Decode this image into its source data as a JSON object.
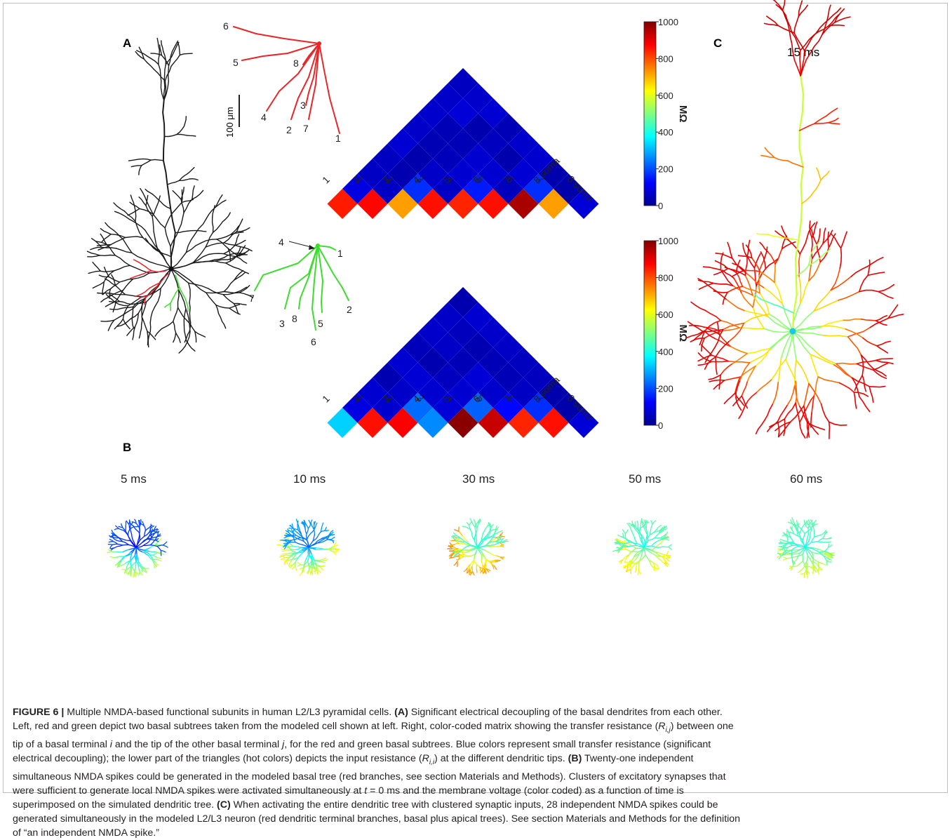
{
  "panels": {
    "a_label": "A",
    "b_label": "B",
    "c_label": "C"
  },
  "scale_bar": "100 μm",
  "red_tree": {
    "soma_label": "soma",
    "tip_labels": [
      "1",
      "2",
      "3",
      "4",
      "5",
      "6",
      "7",
      "8"
    ],
    "color": "#e8262a"
  },
  "green_tree": {
    "soma_label": "soma",
    "tip_labels": [
      "1",
      "2",
      "3",
      "4",
      "5",
      "6",
      "7",
      "8"
    ],
    "color": "#3ddc2e"
  },
  "matrix_axis_labels": [
    "1",
    "2",
    "3",
    "4",
    "5",
    "6",
    "7",
    "8 soma"
  ],
  "colorbar": {
    "unit": "MΩ",
    "ticks": [
      "1000",
      "800",
      "600",
      "400",
      "200",
      "0"
    ]
  },
  "time_labels": {
    "c": "15 ms",
    "b": [
      "5 ms",
      "10 ms",
      "30 ms",
      "50 ms",
      "60 ms"
    ]
  },
  "chart_data": [
    {
      "type": "heatmap",
      "description_source": "red basal subtree",
      "unit": "MΩ",
      "range": [
        0,
        1000
      ],
      "labels": [
        "1",
        "2",
        "3",
        "4",
        "5",
        "6",
        "7",
        "8",
        "soma"
      ],
      "diagonal_input_resistance": [
        850,
        870,
        720,
        860,
        840,
        860,
        960,
        720,
        80
      ],
      "offdiag_first_row": [
        90,
        60,
        170,
        60,
        150,
        50,
        170,
        30
      ]
    },
    {
      "type": "heatmap",
      "description_source": "green basal subtree",
      "unit": "MΩ",
      "range": [
        0,
        1000
      ],
      "labels": [
        "1",
        "2",
        "3",
        "4",
        "5",
        "6",
        "7",
        "8",
        "soma"
      ],
      "diagonal_input_resistance": [
        330,
        860,
        880,
        260,
        990,
        930,
        840,
        860,
        80
      ],
      "offdiag_first_row": [
        90,
        70,
        230,
        80,
        220,
        130,
        170,
        30
      ]
    }
  ],
  "caption": {
    "figure_label": "FIGURE 6 |",
    "lines": [
      {
        "segments": [
          {
            "t": " Multiple NMDA-based functional subunits in human L2/L3 pyramidal cells. "
          },
          {
            "t": "(A)",
            "b": true
          },
          {
            "t": " Significant electrical decoupling of the basal dendrites from each other."
          }
        ]
      },
      {
        "segments": [
          {
            "t": "Left, red and green depict two basal subtrees taken from the modeled cell shown at left. Right, color-coded matrix showing the transfer resistance ("
          },
          {
            "t": "R",
            "i": true
          },
          {
            "t": "i,j",
            "sub": true
          },
          {
            "t": ") between one"
          }
        ]
      },
      {
        "segments": [
          {
            "t": "tip of a basal terminal "
          },
          {
            "t": "i",
            "i": true
          },
          {
            "t": " and the tip of the other basal terminal "
          },
          {
            "t": "j",
            "i": true
          },
          {
            "t": ", for the red and green basal subtrees. Blue colors represent small transfer resistance (significant"
          }
        ]
      },
      {
        "segments": [
          {
            "t": "electrical decoupling); the lower part of the triangles (hot colors) depicts the input resistance ("
          },
          {
            "t": "R",
            "i": true
          },
          {
            "t": "i,i",
            "sub": true
          },
          {
            "t": ") at the different dendritic tips. "
          },
          {
            "t": "(B)",
            "b": true
          },
          {
            "t": " Twenty-one independent"
          }
        ]
      },
      {
        "segments": [
          {
            "t": "simultaneous NMDA spikes could be generated in the modeled basal tree (red branches, see section Materials and Methods). Clusters of excitatory synapses that"
          }
        ]
      },
      {
        "segments": [
          {
            "t": "were sufficient to generate local NMDA spikes were activated simultaneously at "
          },
          {
            "t": "t",
            "i": true
          },
          {
            "t": " = 0 ms and the membrane voltage (color coded) as a function of time is"
          }
        ]
      },
      {
        "segments": [
          {
            "t": "superimposed on the simulated dendritic tree. "
          },
          {
            "t": "(C)",
            "b": true
          },
          {
            "t": " When activating the entire dendritic tree with clustered synaptic inputs, 28 independent NMDA spikes could be"
          }
        ]
      },
      {
        "segments": [
          {
            "t": "generated simultaneously in the modeled L2/L3 neuron (red dendritic terminal branches, basal plus apical trees). See section Materials and Methods for the definition"
          }
        ]
      },
      {
        "segments": [
          {
            "t": "of “an independent NMDA spike.”"
          }
        ]
      }
    ]
  }
}
